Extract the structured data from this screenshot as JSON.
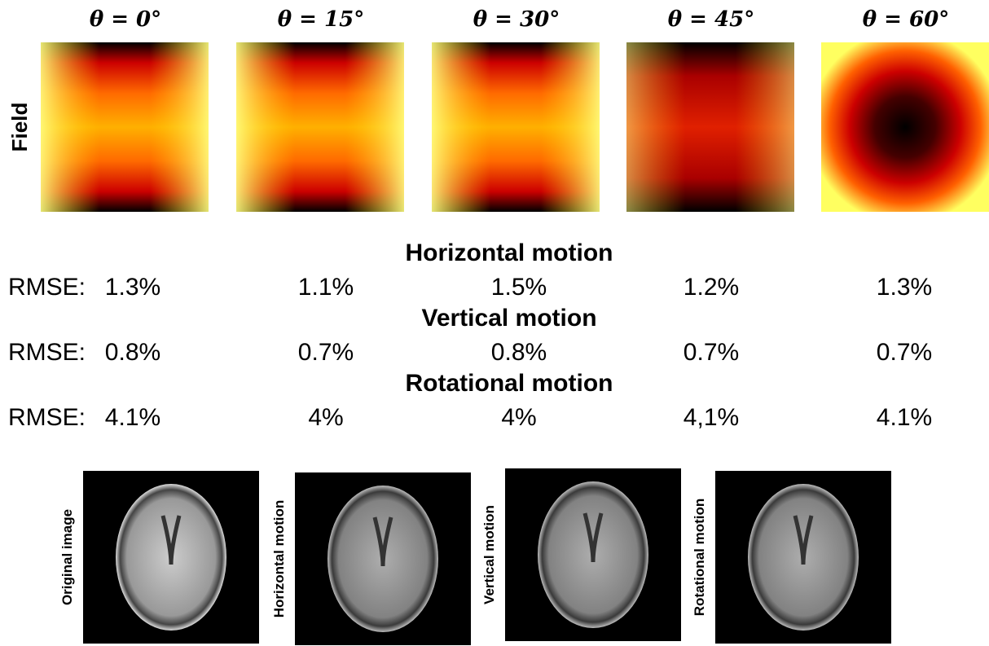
{
  "header": {
    "columns": [
      "θ = 0°",
      "θ = 15°",
      "θ = 30°",
      "θ = 45°",
      "θ = 60°"
    ],
    "row_label": "Field"
  },
  "sections": [
    {
      "title": "Horizontal motion",
      "label": "RMSE:",
      "values": [
        "1.3%",
        "1.1%",
        "1.5%",
        "1.2%",
        "1.3%"
      ]
    },
    {
      "title": "Vertical motion",
      "label": "RMSE:",
      "values": [
        "0.8%",
        "0.7%",
        "0.8%",
        "0.7%",
        "0.7%"
      ]
    },
    {
      "title": "Rotational motion",
      "label": "RMSE:",
      "values": [
        "4.1%",
        "4%",
        "4%",
        "4,1%",
        "4.1%"
      ]
    }
  ],
  "images": [
    {
      "label": "Original image"
    },
    {
      "label": "Horizontal motion"
    },
    {
      "label": "Vertical motion"
    },
    {
      "label": "Rotational motion"
    }
  ]
}
